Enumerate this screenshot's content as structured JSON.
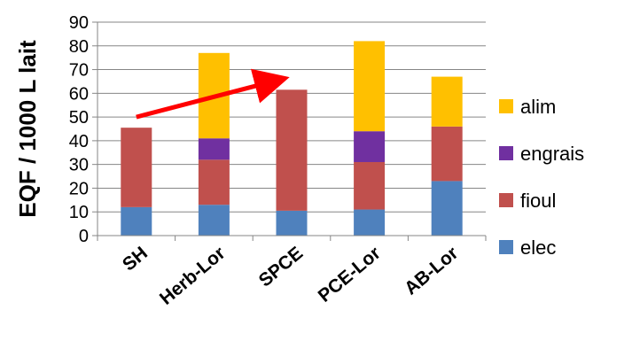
{
  "chart_data": {
    "type": "bar",
    "stacked": true,
    "title": "",
    "xlabel": "",
    "ylabel": "EQF / 1000 L lait",
    "ylim": [
      0,
      90
    ],
    "yticks": [
      0,
      10,
      20,
      30,
      40,
      50,
      60,
      70,
      80,
      90
    ],
    "grid": true,
    "legend_position": "right",
    "categories": [
      "SH",
      "Herb-Lor",
      "SPCE",
      "PCE-Lor",
      "AB-Lor"
    ],
    "series": [
      {
        "name": "elec",
        "color": "#4F81BD",
        "values": [
          12,
          13,
          10.5,
          11,
          23
        ]
      },
      {
        "name": "fioul",
        "color": "#C0504D",
        "values": [
          33.5,
          19,
          51,
          20,
          23
        ]
      },
      {
        "name": "engrais",
        "color": "#7030A0",
        "values": [
          0,
          9,
          0,
          13,
          0
        ]
      },
      {
        "name": "alim",
        "color": "#FFC000",
        "values": [
          0,
          36,
          0,
          38,
          21
        ]
      }
    ],
    "legend_order": [
      "alim",
      "engrais",
      "fioul",
      "elec"
    ],
    "annotations": [
      {
        "type": "arrow",
        "color": "#FF0000",
        "from": {
          "category": "SH",
          "y": 50
        },
        "to": {
          "category": "SPCE",
          "y": 67
        }
      }
    ]
  }
}
